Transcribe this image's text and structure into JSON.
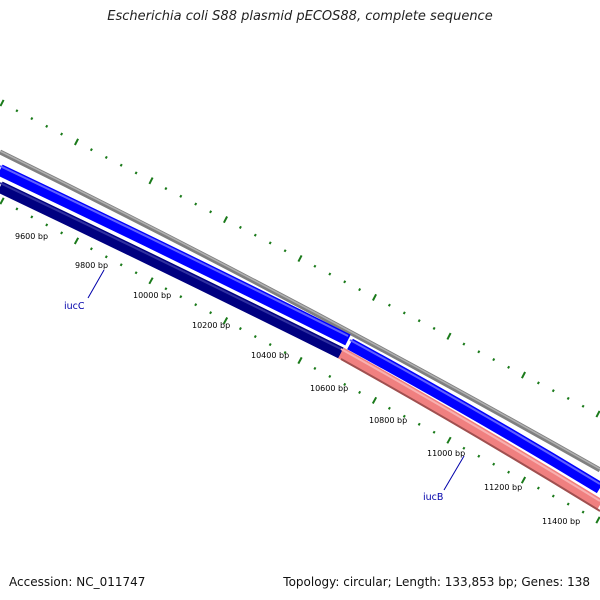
{
  "title": "Escherichia coli S88 plasmid pECOS88, complete sequence",
  "accession": "Accession: NC_011747",
  "summary": "Topology: circular; Length: 133,853 bp; Genes: 138",
  "bp_labels": [
    "9600 bp",
    "9800 bp",
    "10000 bp",
    "10200 bp",
    "10400 bp",
    "10600 bp",
    "10800 bp",
    "11000 bp",
    "11200 bp",
    "11400 bp"
  ],
  "genes": [
    {
      "name": "iucC",
      "color": "#0000ff"
    },
    {
      "name": "iucB",
      "color": "#ff8080"
    }
  ],
  "colors": {
    "backbone": "#808080",
    "forward_gene": "#0000ff",
    "reverse_gene": "#000080",
    "reverse_gene_b": "#f08080",
    "ticks": "#1a7a1a"
  }
}
